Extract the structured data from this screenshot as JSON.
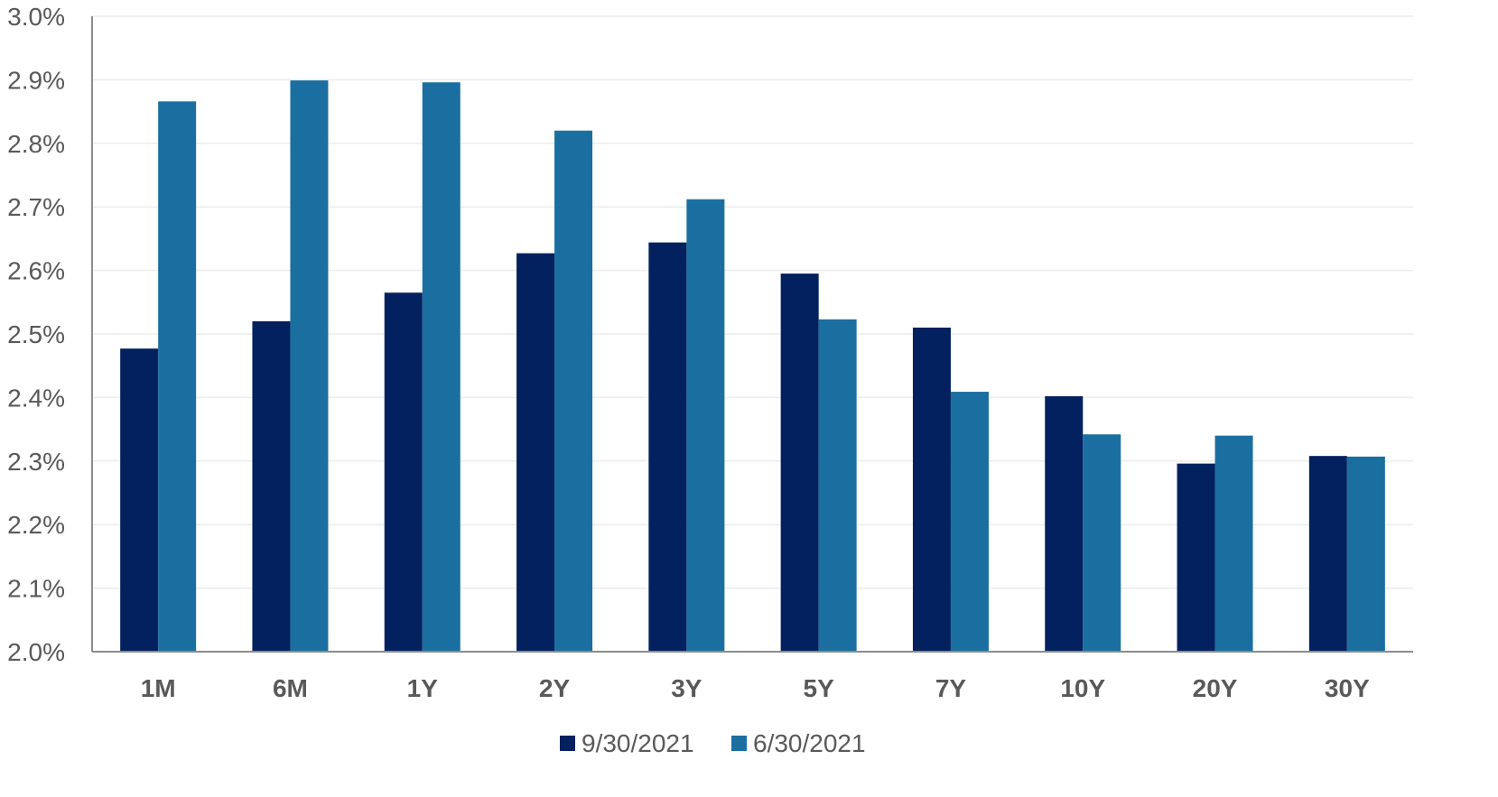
{
  "chart_data": {
    "type": "bar",
    "categories": [
      "1M",
      "6M",
      "1Y",
      "2Y",
      "3Y",
      "5Y",
      "7Y",
      "10Y",
      "20Y",
      "30Y"
    ],
    "series": [
      {
        "name": "9/30/2021",
        "color": "#03215e",
        "values": [
          2.477,
          2.52,
          2.565,
          2.627,
          2.644,
          2.595,
          2.51,
          2.402,
          2.296,
          2.308
        ]
      },
      {
        "name": "6/30/2021",
        "color": "#1a6fa0",
        "values": [
          2.866,
          2.899,
          2.896,
          2.82,
          2.712,
          2.523,
          2.409,
          2.342,
          2.34,
          2.307
        ]
      }
    ],
    "ylim": [
      2.0,
      3.0
    ],
    "yticks": [
      "2.0%",
      "2.1%",
      "2.2%",
      "2.3%",
      "2.4%",
      "2.5%",
      "2.6%",
      "2.7%",
      "2.8%",
      "2.9%",
      "3.0%"
    ],
    "ytick_values": [
      2.0,
      2.1,
      2.2,
      2.3,
      2.4,
      2.5,
      2.6,
      2.7,
      2.8,
      2.9,
      3.0
    ],
    "title": "",
    "xlabel": "",
    "ylabel": "",
    "grid": true,
    "legend_position": "bottom-center"
  }
}
